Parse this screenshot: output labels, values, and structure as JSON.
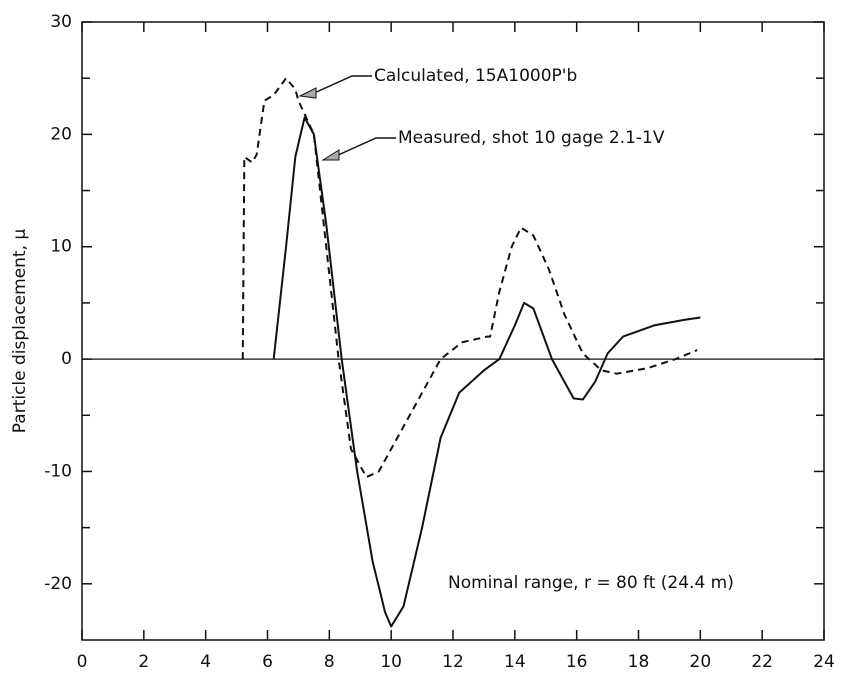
{
  "chart_data": {
    "type": "line",
    "ylabel": "Particle displacement, μ",
    "xlim": [
      0,
      24
    ],
    "xticks": [
      0,
      2,
      4,
      6,
      8,
      10,
      12,
      14,
      16,
      18,
      20,
      22,
      24
    ],
    "ylim": [
      -25,
      30
    ],
    "yticks": [
      -20,
      -10,
      0,
      10,
      20,
      30
    ],
    "minor_yticks": [
      -15,
      -5,
      5,
      15,
      25
    ],
    "zero_line": true,
    "annotations": [
      "Calculated, 15A1000P'b",
      "Measured, shot 10 gage 2.1-1V",
      "Nominal range, r = 80 ft (24.4 m)"
    ],
    "series": [
      {
        "name": "Calculated, 15A1000P'b",
        "color": "#111111",
        "style": "dashed",
        "x": [
          5.2,
          5.25,
          5.5,
          5.65,
          5.9,
          6.2,
          6.6,
          6.9,
          7.0,
          7.5,
          7.9,
          8.3,
          8.7,
          9.2,
          9.6,
          10.2,
          11.0,
          11.6,
          12.3,
          13.1,
          13.2,
          13.5,
          13.9,
          14.2,
          14.6,
          15.1,
          15.6,
          16.2,
          16.8,
          17.3,
          18.3,
          19.2,
          19.9
        ],
        "values": [
          0,
          18,
          17.5,
          18.2,
          23,
          23.5,
          25,
          24,
          23,
          20,
          10,
          0,
          -8,
          -10.5,
          -10,
          -7,
          -3,
          0,
          1.5,
          2,
          2,
          6,
          10,
          11.7,
          11,
          8,
          4,
          0.5,
          -1,
          -1.3,
          -0.8,
          0,
          0.8
        ]
      },
      {
        "name": "Measured, shot 10 gage 2.1-1V",
        "color": "#111111",
        "style": "solid",
        "x": [
          6.2,
          6.6,
          6.9,
          7.2,
          7.5,
          7.9,
          8.4,
          8.9,
          9.4,
          9.8,
          10.0,
          10.4,
          11.0,
          11.6,
          12.2,
          13.0,
          13.5,
          14.0,
          14.3,
          14.6,
          15.2,
          15.9,
          16.2,
          16.6,
          17.0,
          17.5,
          18.5,
          19.5,
          20.0
        ],
        "values": [
          0,
          10,
          18,
          21.5,
          20,
          12,
          0,
          -10,
          -18,
          -22.5,
          -23.8,
          -22,
          -15,
          -7,
          -3,
          -1,
          0,
          3,
          5,
          4.5,
          0,
          -3.5,
          -3.6,
          -2,
          0.5,
          2,
          3,
          3.5,
          3.7
        ]
      }
    ]
  }
}
